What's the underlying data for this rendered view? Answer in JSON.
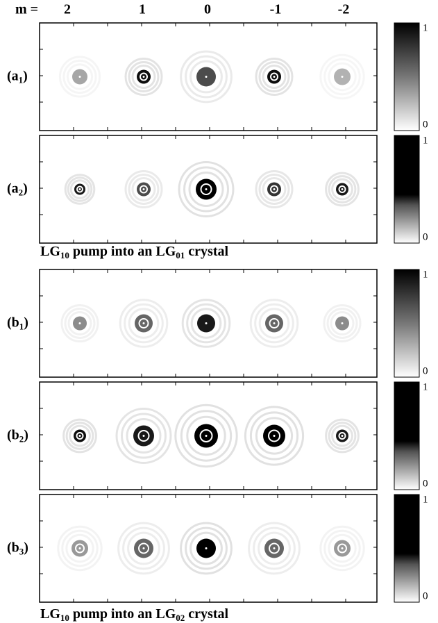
{
  "header": {
    "m_label": "m =",
    "orders": [
      "2",
      "1",
      "0",
      "-1",
      "-2"
    ]
  },
  "panels": [
    {
      "label": "(a",
      "sub": "1",
      "close": ")",
      "colorbar_max": "1",
      "colorbar_min": "0"
    },
    {
      "label": "(a",
      "sub": "2",
      "close": ")",
      "colorbar_max": "1",
      "colorbar_min": "0"
    },
    {
      "label": "(b",
      "sub": "1",
      "close": ")",
      "colorbar_max": "1",
      "colorbar_min": "0"
    },
    {
      "label": "(b",
      "sub": "2",
      "close": ")",
      "colorbar_max": "1",
      "colorbar_min": "0"
    },
    {
      "label": "(b",
      "sub": "3",
      "close": ")",
      "colorbar_max": "1",
      "colorbar_min": "0"
    }
  ],
  "captions": [
    {
      "p1": "LG",
      "s1": "10",
      "p2": " pump into an LG",
      "s2": "01",
      "p3": " crystal"
    },
    {
      "p1": "LG",
      "s1": "10",
      "p2": " pump into an LG",
      "s2": "02",
      "p3": " crystal"
    }
  ]
}
